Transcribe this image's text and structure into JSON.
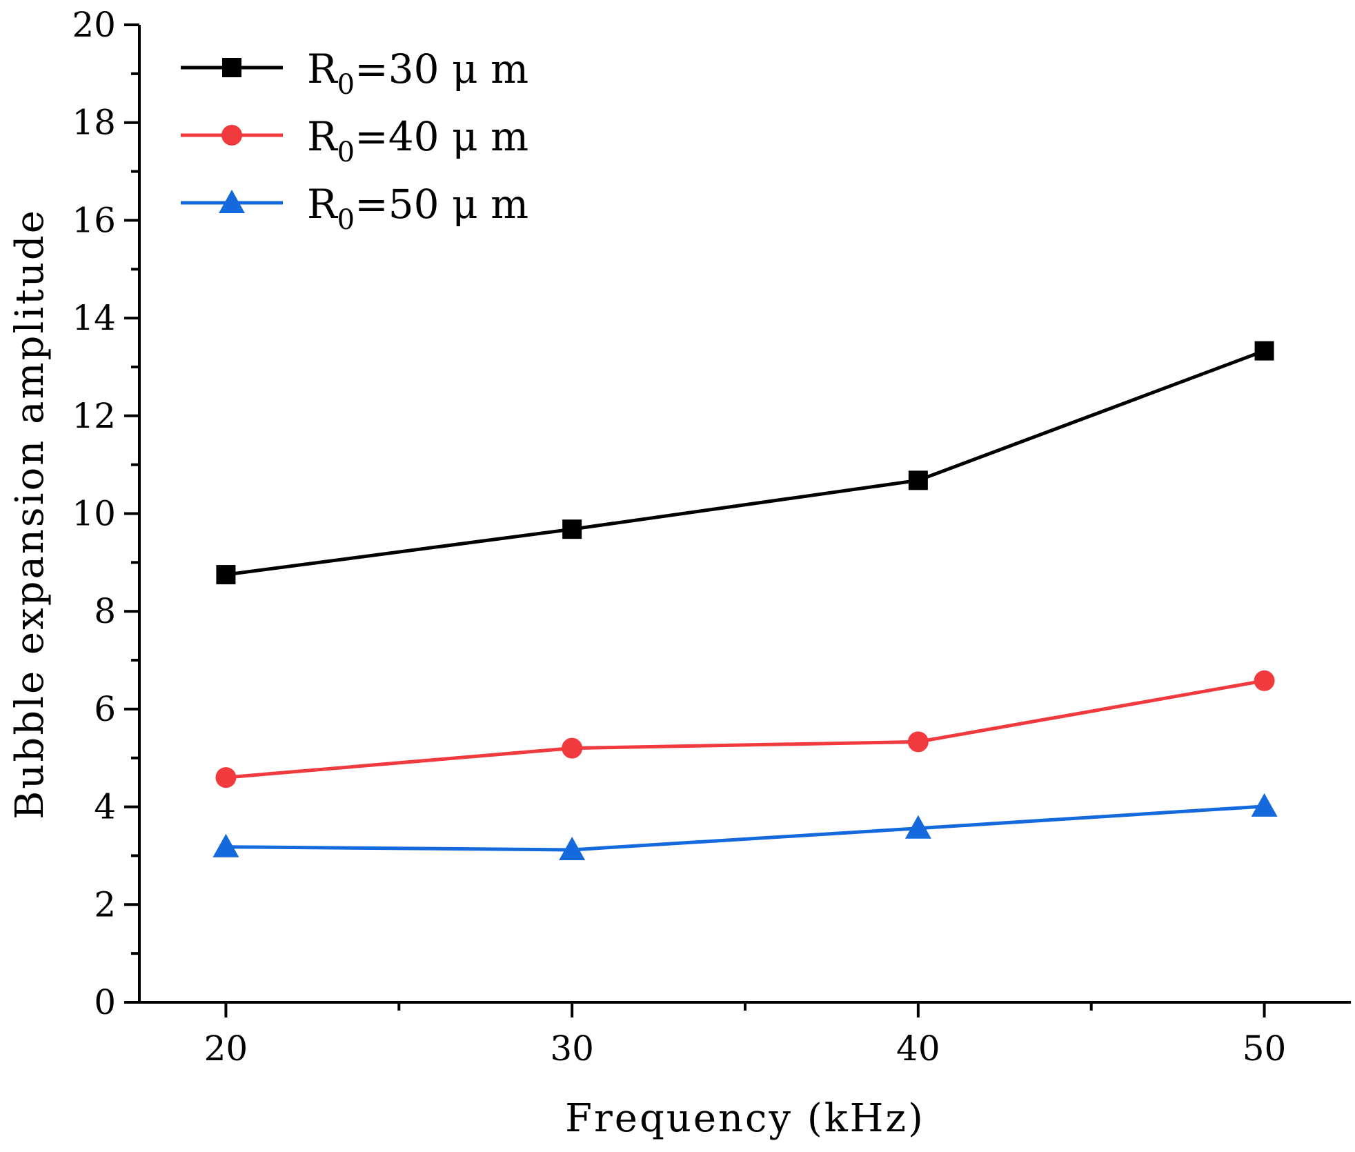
{
  "chart_data": {
    "type": "line",
    "title": "",
    "xlabel": "Frequency (kHz)",
    "ylabel": "Bubble expansion amplitude",
    "x": [
      20,
      30,
      40,
      50
    ],
    "xticks": [
      "20",
      "30",
      "40",
      "50"
    ],
    "xlim": [
      17.5,
      52.5
    ],
    "ylim": [
      0,
      20
    ],
    "yticks": [
      "0",
      "2",
      "4",
      "6",
      "8",
      "10",
      "12",
      "14",
      "16",
      "18",
      "20"
    ],
    "grid": false,
    "legend_position": "top-left",
    "series": [
      {
        "name": "R0=30 μm",
        "label_main": "R",
        "label_sub": "0",
        "label_rest": "=30 μ m",
        "color": "#000000",
        "marker": "square",
        "values": [
          8.75,
          9.68,
          10.68,
          13.33
        ]
      },
      {
        "name": "R0=40 μm",
        "label_main": "R",
        "label_sub": "0",
        "label_rest": "=40 μ m",
        "color": "#f03a3e",
        "marker": "circle",
        "values": [
          4.6,
          5.2,
          5.33,
          6.58
        ]
      },
      {
        "name": "R0=50 μm",
        "label_main": "R",
        "label_sub": "0",
        "label_rest": "=50 μ m",
        "color": "#1469dc",
        "marker": "triangle",
        "values": [
          3.18,
          3.12,
          3.56,
          4.01
        ]
      }
    ]
  }
}
